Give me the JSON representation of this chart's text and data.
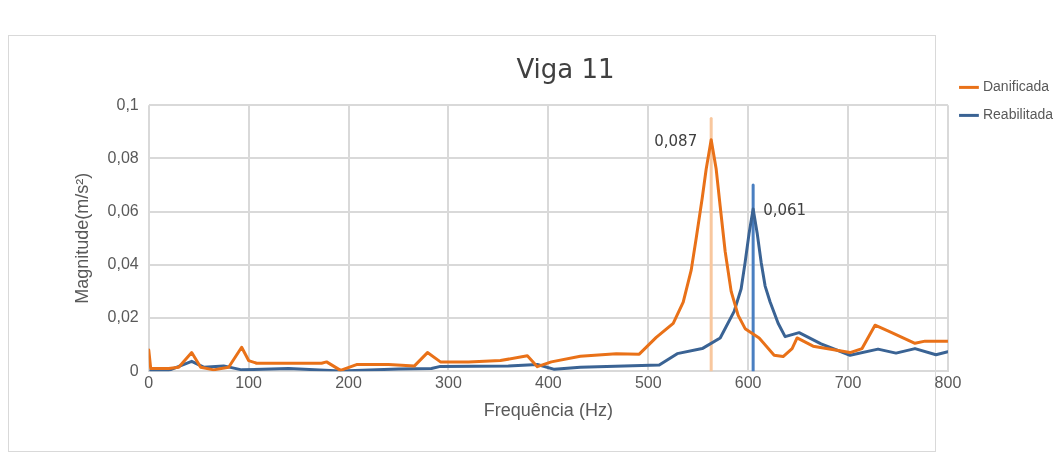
{
  "chart_data": {
    "type": "line",
    "title": "Viga 11",
    "xlabel": "Frequência (Hz)",
    "ylabel": "Magnitude(m/s²)",
    "xlim": [
      0,
      800
    ],
    "xticks": [
      0,
      100,
      200,
      300,
      400,
      500,
      600,
      700,
      800
    ],
    "ylim": [
      0,
      0.1
    ],
    "yticks": [
      0,
      {
        "value": 0.02,
        "label": "0,02"
      },
      {
        "value": 0.04,
        "label": "0,04"
      },
      {
        "value": 0.06,
        "label": "0,06"
      },
      {
        "value": 0.08,
        "label": "0,08"
      },
      {
        "value": 0.1,
        "label": "0,1"
      }
    ],
    "grid": true,
    "legend": "top right",
    "marker": "none",
    "line_style": "solid",
    "series": [
      {
        "name": "Danificada",
        "color": "#e97118",
        "x": [
          0,
          2,
          20,
          30,
          43,
          52,
          65,
          80,
          93,
          100,
          108,
          140,
          173,
          178,
          192,
          208,
          240,
          266,
          279,
          292,
          320,
          352,
          379,
          389,
          403,
          432,
          468,
          491,
          508,
          525,
          535,
          543,
          548,
          554,
          558,
          563,
          568,
          572,
          577,
          583,
          590,
          597,
          611,
          626,
          635,
          644,
          649,
          665,
          702,
          714,
          727,
          741,
          767,
          777,
          800
        ],
        "values": [
          0.008,
          0.001,
          0.001,
          0.0015,
          0.007,
          0.0015,
          0.0005,
          0.0015,
          0.009,
          0.004,
          0.003,
          0.003,
          0.003,
          0.0035,
          0.0003,
          0.0025,
          0.0025,
          0.002,
          0.007,
          0.0035,
          0.0035,
          0.004,
          0.0058,
          0.0017,
          0.0035,
          0.0056,
          0.0066,
          0.0064,
          0.0127,
          0.018,
          0.026,
          0.038,
          0.05,
          0.065,
          0.076,
          0.087,
          0.076,
          0.062,
          0.045,
          0.03,
          0.021,
          0.016,
          0.0125,
          0.006,
          0.0055,
          0.0085,
          0.0125,
          0.0094,
          0.007,
          0.0085,
          0.0173,
          0.015,
          0.0105,
          0.0113,
          0.0113
        ]
      },
      {
        "name": "Reabilitada",
        "color": "#3a6394",
        "x": [
          2,
          20,
          43,
          55,
          75,
          93,
          140,
          192,
          250,
          283,
          292,
          360,
          389,
          406,
          432,
          511,
          529,
          554,
          572,
          586,
          593,
          597,
          601,
          605,
          609,
          613,
          617,
          622,
          630,
          637,
          651,
          673,
          702,
          730,
          748,
          767,
          788,
          800
        ],
        "values": [
          0.0003,
          0.0003,
          0.0037,
          0.0015,
          0.002,
          0.0005,
          0.001,
          0.0001,
          0.0008,
          0.001,
          0.0018,
          0.002,
          0.0025,
          0.0007,
          0.0015,
          0.0023,
          0.0066,
          0.0085,
          0.0125,
          0.0225,
          0.031,
          0.041,
          0.052,
          0.061,
          0.052,
          0.041,
          0.032,
          0.026,
          0.018,
          0.013,
          0.0145,
          0.0103,
          0.006,
          0.0083,
          0.0068,
          0.0085,
          0.0062,
          0.0073
        ]
      },
      {
        "color": "#f8c79e",
        "x": [
          563,
          563
        ],
        "values": [
          0,
          0.095
        ]
      },
      {
        "color": "#4a7fc1",
        "x": [
          605,
          605
        ],
        "values": [
          0,
          0.07
        ]
      }
    ],
    "annotations": [
      {
        "text": "0,087",
        "x": 563,
        "y": 0.087
      },
      {
        "text": "0,061",
        "x": 605,
        "y": 0.061
      }
    ]
  }
}
